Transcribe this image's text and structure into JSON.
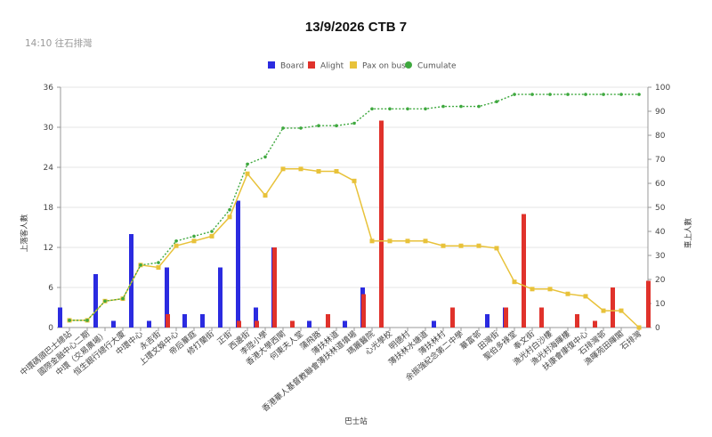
{
  "chart_data": {
    "type": "bar",
    "title": "13/9/2026 CTB 7",
    "subtitle": "14:10 往石排灣",
    "xlabel": "巴士站",
    "ylabel_left": "上落客人數",
    "ylabel_right": "車上人數",
    "ylim_left": [
      0,
      36
    ],
    "ylim_right": [
      0,
      100
    ],
    "yticks_left": [
      "0",
      "6",
      "12",
      "18",
      "24",
      "30",
      "36"
    ],
    "yticks_right": [
      "0",
      "10",
      "20",
      "30",
      "40",
      "50",
      "60",
      "70",
      "80",
      "90",
      "100"
    ],
    "legend_position": "top",
    "grid": true,
    "categories": [
      "中環碼頭巴士總站",
      "國際金融中心二期",
      "中環（交易廣場）",
      "恒生銀行總行大廈",
      "中環中心",
      "永吉街",
      "上環文娛中心",
      "帝后華庭",
      "修打蘭街",
      "正街",
      "西邊街",
      "李陞小學",
      "香港大學西閘",
      "何東夫人堂",
      "蒲飛路",
      "薄扶林道",
      "香港華人基督教聯會薄扶林道墳場",
      "瑪麗醫院",
      "心光學校",
      "明德村",
      "薄扶林水塘道",
      "薄扶林村",
      "余振強紀念第二中學",
      "華富邨",
      "田灣街",
      "聖伯多祿堂",
      "奉文街",
      "漁光村白沙樓",
      "漁光村海暉樓",
      "扶康會康復中心",
      "石排灣邨",
      "漁暉苑田暉閣",
      "石排灣"
    ],
    "series": [
      {
        "name": "Board",
        "type": "bar",
        "axis": "left",
        "color": "#2b2be0",
        "values": [
          3,
          0,
          8,
          1,
          14,
          1,
          9,
          2,
          2,
          9,
          19,
          3,
          12,
          0,
          1,
          0,
          1,
          6,
          0,
          0,
          0,
          1,
          0,
          0,
          2,
          3,
          0,
          0,
          0,
          0,
          0,
          0,
          0
        ]
      },
      {
        "name": "Alight",
        "type": "bar",
        "axis": "left",
        "color": "#e0322b",
        "values": [
          0,
          0,
          0,
          0,
          0,
          2,
          0,
          0,
          0,
          1,
          1,
          12,
          1,
          0,
          2,
          0,
          5,
          31,
          0,
          0,
          0,
          3,
          0,
          0,
          3,
          17,
          3,
          0,
          2,
          1,
          6,
          0,
          7
        ]
      },
      {
        "name": "Pax on bus",
        "type": "line",
        "axis": "right",
        "color": "#e8c23a",
        "values": [
          3,
          3,
          11,
          12,
          26,
          25,
          34,
          36,
          38,
          46,
          64,
          55,
          66,
          66,
          65,
          65,
          61,
          36,
          36,
          36,
          36,
          34,
          34,
          34,
          33,
          19,
          16,
          16,
          14,
          13,
          7,
          7,
          0
        ]
      },
      {
        "name": "Cumulate",
        "type": "line",
        "axis": "right",
        "color": "#3ea83e",
        "values": [
          3,
          3,
          11,
          12,
          26,
          27,
          36,
          38,
          40,
          49,
          68,
          71,
          83,
          83,
          84,
          84,
          85,
          91,
          91,
          91,
          91,
          92,
          92,
          92,
          94,
          97,
          97,
          97,
          97,
          97,
          97,
          97,
          97
        ]
      }
    ]
  }
}
